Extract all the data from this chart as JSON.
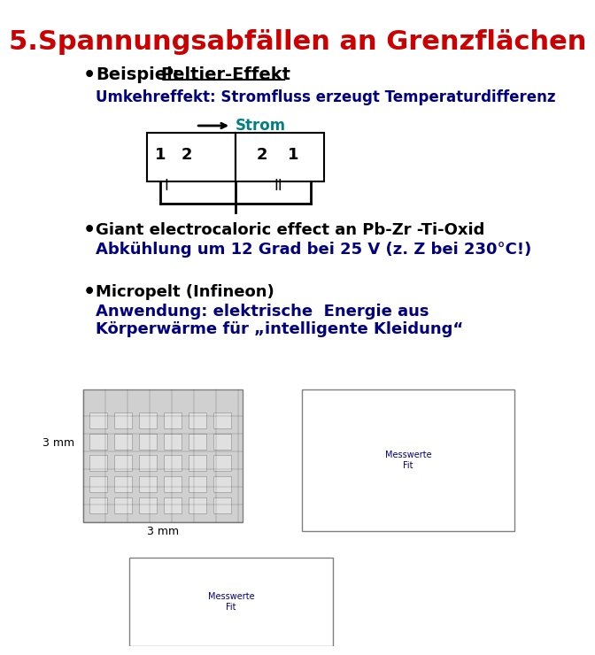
{
  "title": "5.Spannungsabfällen an Grenzflächen",
  "title_color": "#cc0000",
  "bg_color": "#ffffff",
  "bullet1_bold": "Beispiel:Peltier-Effekt",
  "bullet1_bold_underline": true,
  "bullet1_sub": "Umkehreffekt: Stromfluss erzeugt Temperaturdifferenz",
  "bullet1_sub_color": "#000080",
  "strom_label": "Strom",
  "strom_color": "#008080",
  "diagram_numbers": [
    "1",
    "2",
    "2",
    "1"
  ],
  "diagram_roman": [
    "I",
    "II"
  ],
  "bullet2_bold": "Giant electrocaloric effect an Pb-Zr -Ti-Oxid",
  "bullet2_sub": "Abkühlung um 12 Grad bei 25 V (z. Z bei 230°C!)",
  "bullet2_sub_color": "#000080",
  "bullet3_bold": "Micropelt (Infineon)",
  "bullet3_sub1": "Anwendung: elektrische  Energie aus",
  "bullet3_sub2": "Körperwärme für „intelligente Kleidung“",
  "bullet3_sub_color": "#000080",
  "label_3mm_left": "3 mm",
  "label_3mm_bottom": "3 mm"
}
